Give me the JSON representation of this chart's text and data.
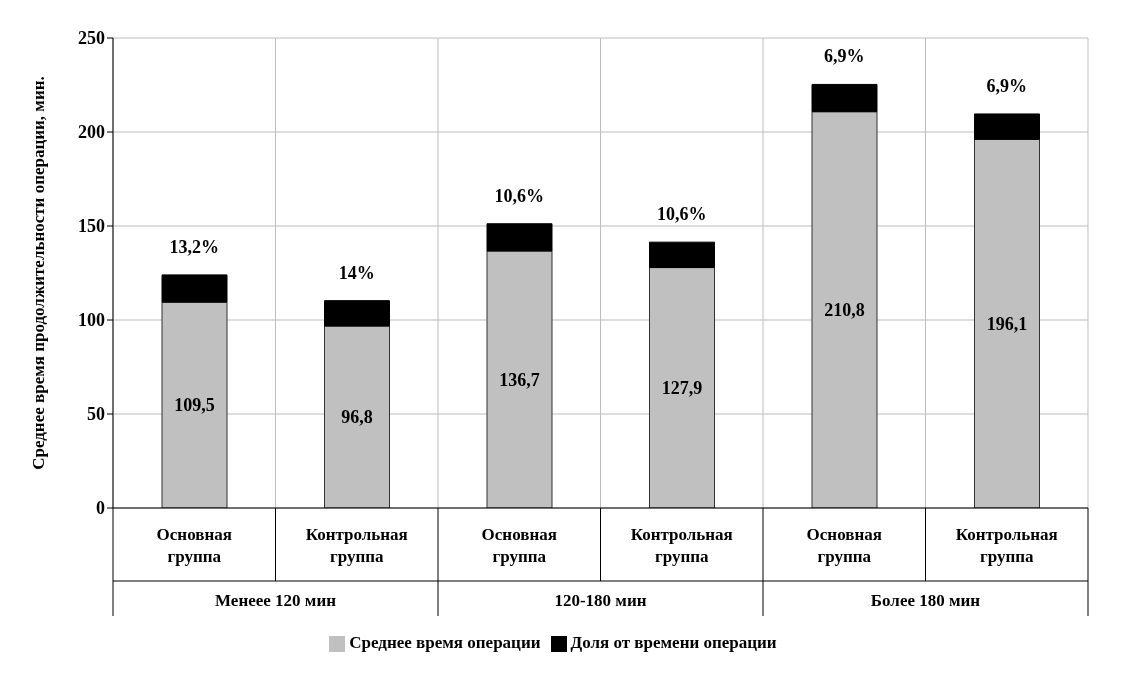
{
  "chart_data": {
    "type": "bar",
    "ylabel": "Среднее время продолжительности операции, мин.",
    "categories": [
      "Основная группа",
      "Контрольная группа",
      "Основная группа",
      "Контрольная группа",
      "Основная группа",
      "Контрольная группа"
    ],
    "series": [
      {
        "name": "Среднее время операции",
        "color": "#c0c0c0",
        "values": [
          109.5,
          96.8,
          136.7,
          127.9,
          210.8,
          196.1
        ],
        "value_labels": [
          "109,5",
          "96,8",
          "136,7",
          "127,9",
          "210,8",
          "196,1"
        ]
      },
      {
        "name": "Доля от времени операции",
        "color": "#000000",
        "values": [
          14.5,
          13.5,
          14.5,
          13.5,
          14.5,
          13.5
        ]
      }
    ],
    "stacked": true,
    "ylim": [
      0,
      250
    ],
    "yticks": [
      0,
      50,
      100,
      150,
      200,
      250
    ],
    "grid": true,
    "legend": "bottom",
    "annotations": [
      "Менеее 120 мин",
      "120-180 мин",
      "Более 180 мин",
      {
        "text": "13,2%",
        "y": 124
      },
      {
        "text": "14%",
        "y": 110.3
      },
      {
        "text": "10,6%",
        "y": 151.2
      },
      {
        "text": "10,6%",
        "y": 141.4
      },
      {
        "text": "6,9%",
        "y": 225.3
      },
      {
        "text": "6,9%",
        "y": 209.6
      }
    ]
  }
}
